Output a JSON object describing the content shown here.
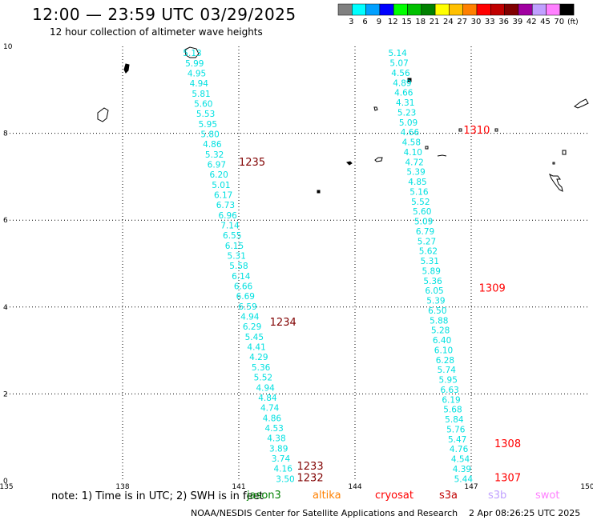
{
  "header": {
    "title": "12:00 — 23:59 UTC 03/29/2025",
    "subtitle": "12 hour collection of altimeter wave heights"
  },
  "legend": {
    "unit": "(ft)",
    "bins": [
      {
        "label": "3",
        "color": "#808080"
      },
      {
        "label": "6",
        "color": "#00ffff"
      },
      {
        "label": "9",
        "color": "#00a0ff"
      },
      {
        "label": "12",
        "color": "#0000ff"
      },
      {
        "label": "15",
        "color": "#00ff00"
      },
      {
        "label": "18",
        "color": "#00c000"
      },
      {
        "label": "21",
        "color": "#008000"
      },
      {
        "label": "24",
        "color": "#ffff00"
      },
      {
        "label": "27",
        "color": "#ffc000"
      },
      {
        "label": "30",
        "color": "#ff8000"
      },
      {
        "label": "33",
        "color": "#ff0000"
      },
      {
        "label": "36",
        "color": "#c00000"
      },
      {
        "label": "39",
        "color": "#800000"
      },
      {
        "label": "42",
        "color": "#a000a0"
      },
      {
        "label": "45",
        "color": "#c0a0ff"
      },
      {
        "label": "70",
        "color": "#ff80ff"
      },
      {
        "label": "",
        "color": "#000000"
      }
    ]
  },
  "axes": {
    "x_ticks": [
      "135",
      "138",
      "141",
      "144",
      "147",
      "150"
    ],
    "y_ticks": [
      "0",
      "2",
      "4",
      "6",
      "8",
      "10"
    ],
    "x_range": [
      135,
      150
    ],
    "y_range": [
      0,
      10
    ]
  },
  "tracks": [
    {
      "color": "#00e0e0",
      "values": [
        "5.13",
        "5.99",
        "4.95",
        "4.94",
        "5.81",
        "5.60",
        "5.53",
        "5.95",
        "5.80",
        "4.86",
        "5.32",
        "6.97",
        "6.20",
        "5.01",
        "6.17",
        "6.73",
        "6.96",
        "7.14",
        "6.55",
        "6.15",
        "5.31",
        "5.58",
        "6.14",
        "6.66",
        "6.69",
        "6.59",
        "4.94",
        "6.29",
        "5.45",
        "4.41",
        "4.29",
        "5.36",
        "5.52",
        "4.94",
        "4.84",
        "4.74",
        "4.86",
        "4.53",
        "4.38",
        "3.89",
        "3.74",
        "4.16",
        "3.50"
      ],
      "lon_top": 139.8,
      "lon_bottom": 142.2,
      "lat_top": 9.85,
      "lat_bottom": 0.05
    },
    {
      "color": "#00e0e0",
      "values": [
        "5.14",
        "5.07",
        "4.56",
        "4.89",
        "4.66",
        "4.31",
        "5.23",
        "5.09",
        "4.66",
        "4.58",
        "4.10",
        "4.72",
        "5.39",
        "4.85",
        "5.16",
        "5.52",
        "5.60",
        "5.09",
        "6.79",
        "5.27",
        "5.62",
        "5.31",
        "5.89",
        "5.36",
        "6.05",
        "5.39",
        "6.50",
        "5.88",
        "5.28",
        "6.40",
        "6.10",
        "6.28",
        "5.74",
        "5.95",
        "6.63",
        "6.19",
        "5.68",
        "5.84",
        "5.76",
        "5.47",
        "4.76",
        "4.54",
        "4.39",
        "5.44"
      ],
      "lon_top": 145.1,
      "lon_bottom": 146.8,
      "lat_top": 9.85,
      "lat_bottom": 0.05
    }
  ],
  "time_labels": [
    {
      "text": "1235",
      "color": "#800000",
      "lon": 141.0,
      "lat": 7.33
    },
    {
      "text": "1234",
      "color": "#800000",
      "lon": 141.8,
      "lat": 3.65
    },
    {
      "text": "1233",
      "color": "#800000",
      "lon": 142.5,
      "lat": 0.33
    },
    {
      "text": "1232",
      "color": "#800000",
      "lon": 142.5,
      "lat": 0.06
    },
    {
      "text": "1310",
      "color": "#ff0000",
      "lon": 146.8,
      "lat": 8.07
    },
    {
      "text": "1309",
      "color": "#ff0000",
      "lon": 147.2,
      "lat": 4.43
    },
    {
      "text": "1308",
      "color": "#ff0000",
      "lon": 147.6,
      "lat": 0.85
    },
    {
      "text": "1307",
      "color": "#ff0000",
      "lon": 147.6,
      "lat": 0.06
    }
  ],
  "note": {
    "text": "note:  1) Time is in UTC; 2) SWH is in feet",
    "missions": [
      {
        "name": "jason3",
        "color": "#008000"
      },
      {
        "name": "altika",
        "color": "#ff8000"
      },
      {
        "name": "cryosat",
        "color": "#ff0000"
      },
      {
        "name": "s3a",
        "color": "#c00000"
      },
      {
        "name": "s3b",
        "color": "#c0a0ff"
      },
      {
        "name": "swot",
        "color": "#ff80ff"
      }
    ]
  },
  "footer": {
    "credit": "NOAA/NESDIS Center for Satellite Applications and Research",
    "timestamp": "2 Apr 08:26:25 UTC 2025"
  }
}
